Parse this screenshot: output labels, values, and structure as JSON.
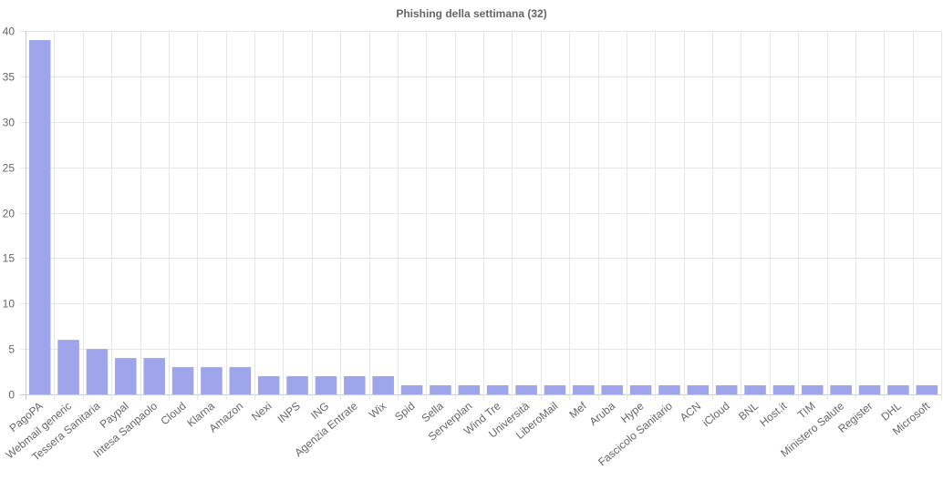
{
  "chart_data": {
    "type": "bar",
    "title": "Phishing della settimana (32)",
    "xlabel": "",
    "ylabel": "",
    "ylim": [
      0,
      40
    ],
    "yticks": [
      0,
      5,
      10,
      15,
      20,
      25,
      30,
      35,
      40
    ],
    "grid": true,
    "legend": "none",
    "bar_color": "#9ea5ea",
    "categories": [
      "PagoPA",
      "Webmail generic",
      "Tessera Sanitaria",
      "Paypal",
      "Intesa Sanpaolo",
      "Cloud",
      "Klarna",
      "Amazon",
      "Nexi",
      "INPS",
      "ING",
      "Agenzia Entrate",
      "Wix",
      "Spid",
      "Sella",
      "Serverplan",
      "Wind Tre",
      "Università",
      "LiberoMail",
      "Mef",
      "Aruba",
      "Hype",
      "Fascicolo Sanitario",
      "ACN",
      "iCloud",
      "BNL",
      "Host.it",
      "TIM",
      "Ministero Salute",
      "Register",
      "DHL",
      "Microsoft"
    ],
    "values": [
      39,
      6,
      5,
      4,
      4,
      3,
      3,
      3,
      2,
      2,
      2,
      2,
      2,
      1,
      1,
      1,
      1,
      1,
      1,
      1,
      1,
      1,
      1,
      1,
      1,
      1,
      1,
      1,
      1,
      1,
      1,
      1
    ]
  }
}
